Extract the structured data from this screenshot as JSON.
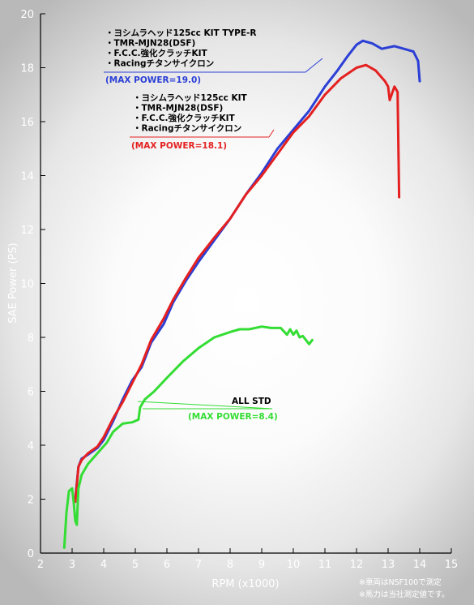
{
  "chart_data": {
    "type": "line",
    "xlabel": "RPM (x1000)",
    "ylabel": "SAE Power (PS)",
    "xlim": [
      2,
      15
    ],
    "ylim": [
      0,
      20
    ],
    "xticks": [
      2,
      3,
      4,
      5,
      6,
      7,
      8,
      9,
      10,
      11,
      12,
      13,
      14,
      15
    ],
    "yticks": [
      0,
      2,
      4,
      6,
      8,
      10,
      12,
      14,
      16,
      18,
      20
    ],
    "grid": false,
    "series": [
      {
        "color": "#2b3fd6",
        "x": [
          3.1,
          3.2,
          3.3,
          3.5,
          3.8,
          4.0,
          4.3,
          4.6,
          4.9,
          5.2,
          5.5,
          5.9,
          6.2,
          6.6,
          7.0,
          7.5,
          8.0,
          8.5,
          9.0,
          9.5,
          10.0,
          10.5,
          11.0,
          11.4,
          11.7,
          12.0,
          12.2,
          12.5,
          12.8,
          13.2,
          13.5,
          13.8,
          13.95,
          14.0
        ],
        "y": [
          2.0,
          3.2,
          3.5,
          3.65,
          3.9,
          4.2,
          4.9,
          5.7,
          6.4,
          6.9,
          7.8,
          8.5,
          9.3,
          10.1,
          10.8,
          11.6,
          12.4,
          13.3,
          14.1,
          15.0,
          15.7,
          16.4,
          17.3,
          17.9,
          18.4,
          18.85,
          19.0,
          18.9,
          18.7,
          18.8,
          18.7,
          18.6,
          18.25,
          17.5
        ]
      },
      {
        "color": "#e52020",
        "x": [
          3.1,
          3.2,
          3.3,
          3.5,
          3.8,
          4.0,
          4.3,
          4.6,
          4.9,
          5.2,
          5.5,
          5.9,
          6.2,
          6.6,
          7.0,
          7.5,
          8.0,
          8.5,
          9.0,
          9.5,
          10.0,
          10.5,
          11.0,
          11.5,
          12.0,
          12.3,
          12.6,
          12.9,
          13.0,
          13.05,
          13.2,
          13.3,
          13.35
        ],
        "y": [
          1.9,
          3.2,
          3.45,
          3.7,
          3.95,
          4.3,
          5.0,
          5.6,
          6.3,
          7.0,
          7.9,
          8.7,
          9.4,
          10.2,
          10.95,
          11.7,
          12.4,
          13.3,
          14.0,
          14.8,
          15.6,
          16.2,
          17.0,
          17.6,
          18.0,
          18.1,
          17.9,
          17.5,
          17.3,
          16.8,
          17.3,
          17.1,
          13.2
        ]
      },
      {
        "color": "#33dd33",
        "x": [
          2.75,
          2.82,
          2.9,
          3.0,
          3.05,
          3.1,
          3.15,
          3.2,
          3.3,
          3.5,
          3.8,
          4.1,
          4.3,
          4.6,
          4.9,
          5.1,
          5.15,
          5.3,
          5.6,
          6.0,
          6.5,
          7.0,
          7.5,
          8.0,
          8.3,
          8.6,
          9.0,
          9.3,
          9.6,
          9.8,
          9.9,
          10.0,
          10.1,
          10.2,
          10.3,
          10.4,
          10.5,
          10.6
        ],
        "y": [
          0.2,
          1.5,
          2.3,
          2.4,
          1.9,
          1.2,
          1.05,
          2.4,
          2.9,
          3.3,
          3.7,
          4.1,
          4.5,
          4.8,
          4.85,
          4.95,
          5.4,
          5.7,
          6.0,
          6.5,
          7.1,
          7.6,
          8.0,
          8.2,
          8.3,
          8.3,
          8.4,
          8.35,
          8.35,
          8.1,
          8.3,
          8.1,
          8.25,
          8.0,
          8.05,
          7.9,
          7.75,
          7.9
        ]
      }
    ],
    "annotations": {
      "blue": {
        "lines": [
          "・ヨシムラヘッド125cc KIT TYPE-R",
          "・TMR-MJN28(DSF)",
          "・F.C.C.強化クラッチKIT",
          "・Racingチタンサイクロン"
        ],
        "max_label": "(MAX POWER=19.0)",
        "color": "#2b3fd6"
      },
      "red": {
        "lines": [
          "・ヨシムラヘッド125cc KIT",
          "・TMR-MJN28(DSF)",
          "・F.C.C.強化クラッチKIT",
          "・Racingチタンサイクロン"
        ],
        "max_label": "(MAX POWER=18.1)",
        "color": "#e52020"
      },
      "green": {
        "lines": [
          "ALL STD"
        ],
        "max_label": "(MAX POWER=8.4)",
        "color": "#33dd33"
      }
    },
    "footnotes": [
      "※車両はNSF100で測定",
      "※馬力は当社測定値です。"
    ]
  }
}
